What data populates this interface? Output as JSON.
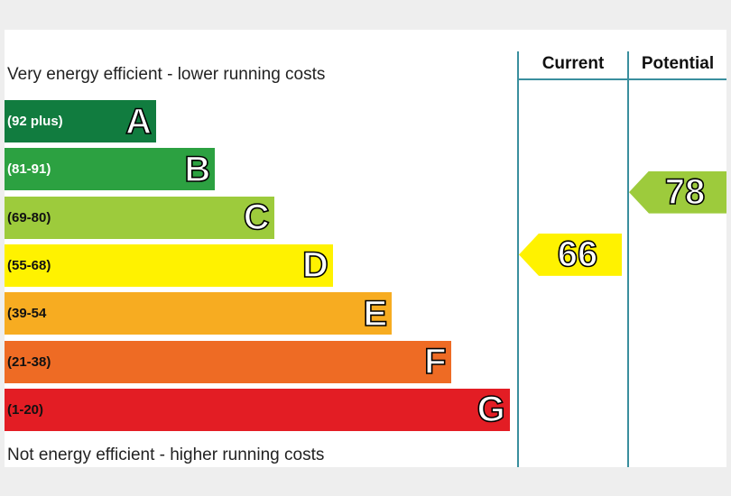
{
  "chart_data": {
    "type": "bar",
    "title": "",
    "top_caption": "Very energy efficient - lower running costs",
    "bottom_caption": "Not energy efficient - higher running costs",
    "bands": [
      {
        "letter": "A",
        "range": "(92 plus)",
        "color": "#117c3f",
        "range_color": "#ffffff"
      },
      {
        "letter": "B",
        "range": "(81-91)",
        "color": "#2ca141",
        "range_color": "#ffffff"
      },
      {
        "letter": "C",
        "range": "(69-80)",
        "color": "#9dcb3c",
        "range_color": "#111111"
      },
      {
        "letter": "D",
        "range": "(55-68)",
        "color": "#fff200",
        "range_color": "#111111"
      },
      {
        "letter": "E",
        "range": "(39-54",
        "color": "#f7ac21",
        "range_color": "#111111"
      },
      {
        "letter": "F",
        "range": "(21-38)",
        "color": "#ee6b24",
        "range_color": "#111111"
      },
      {
        "letter": "G",
        "range": "(1-20)",
        "color": "#e31d24",
        "range_color": "#111111"
      }
    ],
    "columns": [
      "Current",
      "Potential"
    ],
    "series": [
      {
        "name": "Current",
        "values": [
          66
        ],
        "band": "D",
        "color": "#fff200"
      },
      {
        "name": "Potential",
        "values": [
          78
        ],
        "band": "C",
        "color": "#9dcb3c"
      }
    ]
  }
}
